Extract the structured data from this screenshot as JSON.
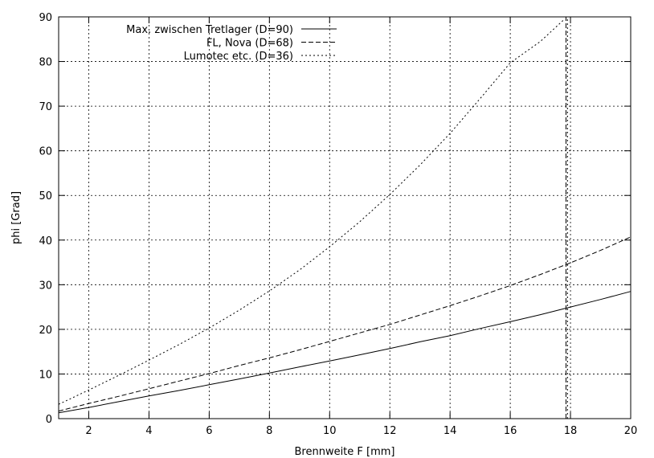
{
  "chart_data": {
    "type": "line",
    "title": "",
    "xlabel": "Brennweite F [mm]",
    "ylabel": "phi [Grad]",
    "xlim": [
      1,
      20
    ],
    "ylim": [
      0,
      90
    ],
    "xticks": [
      2,
      4,
      6,
      8,
      10,
      12,
      14,
      16,
      18,
      20
    ],
    "yticks": [
      0,
      10,
      20,
      30,
      40,
      50,
      60,
      70,
      80,
      90
    ],
    "grid": true,
    "legend_position": "top-left",
    "series": [
      {
        "name": "Max. zwischen Tretlager (D=90)",
        "dash": "solid",
        "x": [
          1,
          2,
          3,
          4,
          5,
          6,
          7,
          8,
          9,
          10,
          11,
          12,
          13,
          14,
          15,
          16,
          17,
          18,
          19,
          20
        ],
        "y": [
          1.3,
          2.5,
          3.8,
          5.1,
          6.3,
          7.6,
          8.9,
          10.2,
          11.6,
          12.9,
          14.3,
          15.7,
          17.2,
          18.6,
          20.2,
          21.7,
          23.3,
          25.0,
          26.7,
          28.5
        ]
      },
      {
        "name": "FL, Nova (D=68)",
        "dash": "dashed",
        "x": [
          1,
          2,
          3,
          4,
          5,
          6,
          7,
          8,
          9,
          10,
          11,
          12,
          13,
          14,
          15,
          16,
          17,
          18,
          19,
          20
        ],
        "y": [
          1.7,
          3.4,
          5.0,
          6.7,
          8.4,
          10.1,
          11.9,
          13.6,
          15.4,
          17.3,
          19.2,
          21.1,
          23.2,
          25.3,
          27.5,
          29.8,
          32.3,
          34.9,
          37.7,
          40.7
        ]
      },
      {
        "name": "Lumotec etc. (D=36)",
        "dash": "dotted",
        "x": [
          1,
          2,
          3,
          4,
          5,
          6,
          7,
          8,
          9,
          10,
          11,
          12,
          13,
          14,
          15,
          16,
          17,
          17.8
        ],
        "y": [
          3.2,
          6.4,
          9.7,
          13.1,
          16.6,
          20.3,
          24.3,
          28.6,
          33.3,
          38.5,
          44.1,
          50.2,
          56.8,
          63.9,
          71.7,
          79.7,
          84.5,
          89.5
        ]
      }
    ],
    "annotations": [
      {
        "type": "vertical-line",
        "x": 17.85,
        "y_range": [
          0,
          90
        ],
        "dash": "dashed"
      },
      {
        "type": "vertical-line",
        "x": 17.9,
        "y_range": [
          0,
          90
        ],
        "dash": "dotted"
      }
    ]
  }
}
